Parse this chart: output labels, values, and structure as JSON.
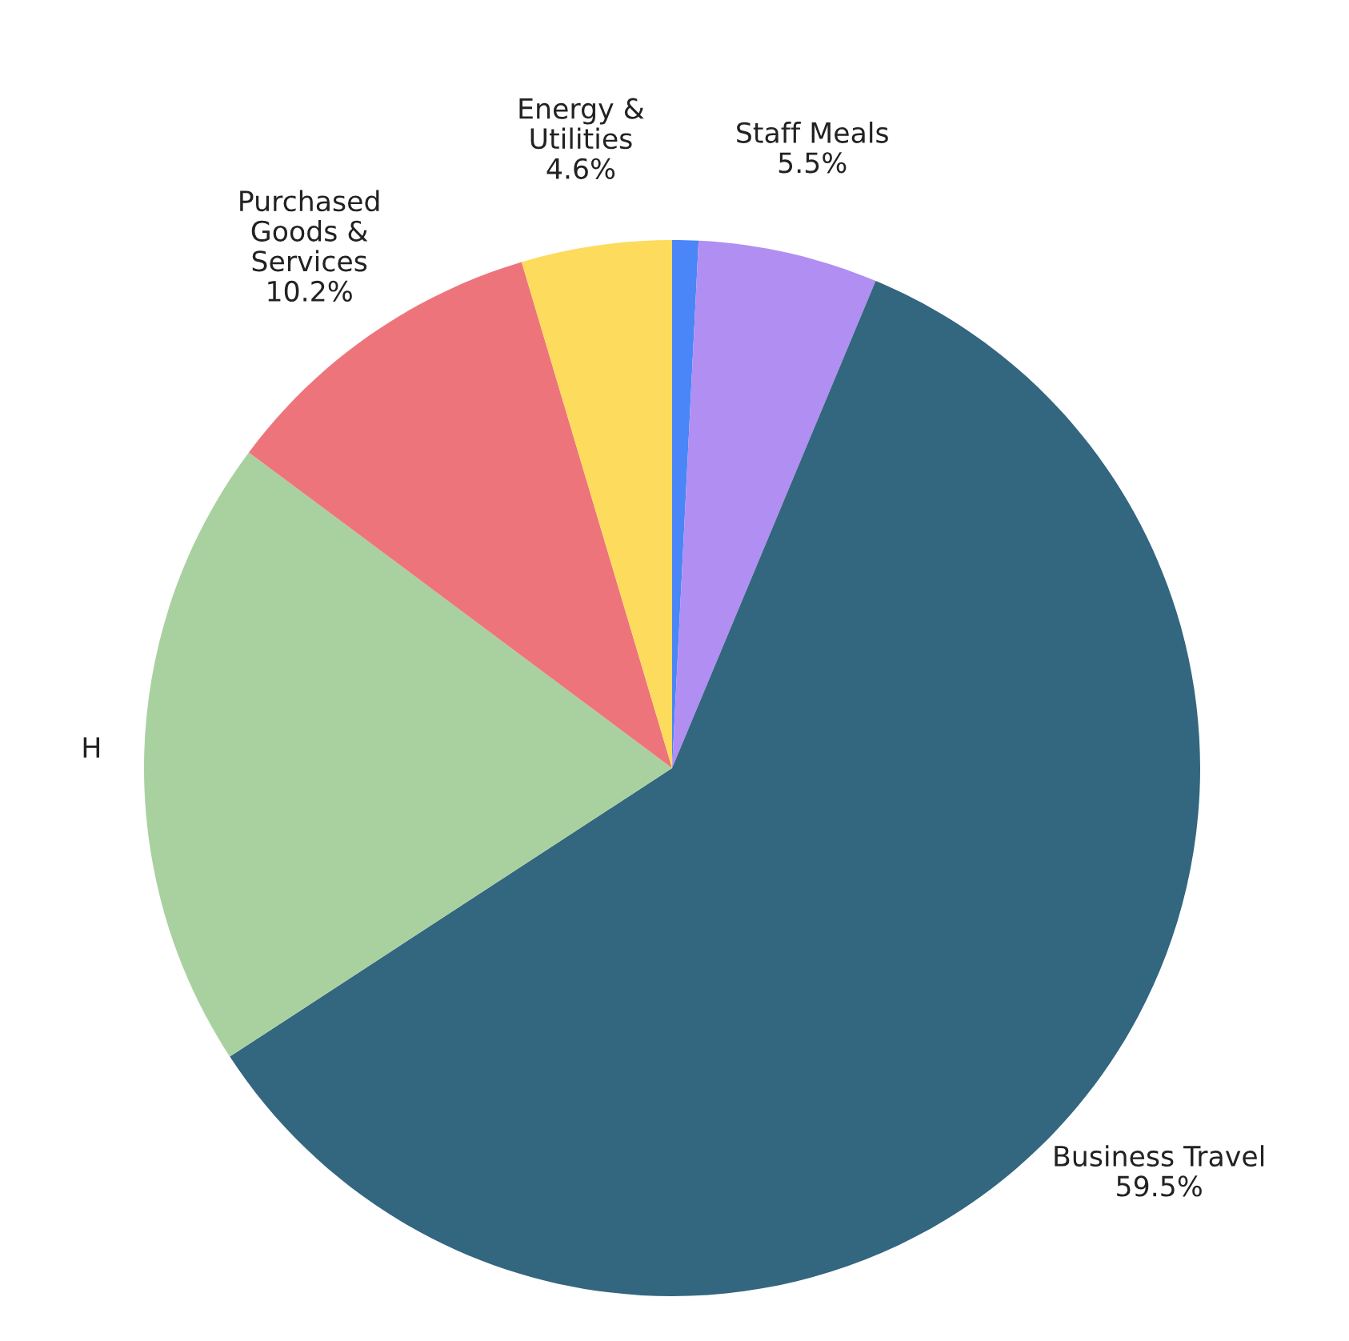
{
  "chart_data": {
    "type": "pie",
    "categories": [
      null,
      "Staff Meals",
      "Business Travel",
      "H",
      "Purchased\nGoods &\nServices",
      "Energy &\nUtilities"
    ],
    "values": [
      0.8,
      5.5,
      59.5,
      19.4,
      10.2,
      4.6
    ],
    "value_labels": [
      null,
      "5.5%",
      "59.5%",
      null,
      "10.2%",
      "4.6%"
    ],
    "colors": [
      "#4a86f7",
      "#b08ef2",
      "#33667f",
      "#a9d1a0",
      "#ee747b",
      "#fddb5c"
    ]
  }
}
